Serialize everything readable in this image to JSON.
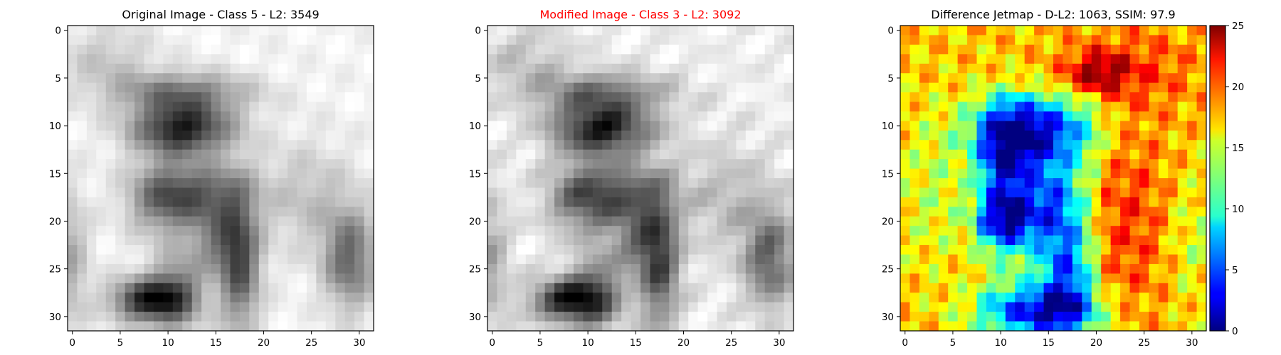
{
  "chart_data": [
    {
      "type": "heatmap",
      "title": "Original Image - Class 5 - L2: 3549",
      "title_color": "#000000",
      "colormap": "gray",
      "grid_size": [
        32,
        32
      ],
      "xlim": [
        -0.5,
        31.5
      ],
      "ylim": [
        31.5,
        -0.5
      ],
      "xticks": [
        "0",
        "5",
        "10",
        "15",
        "20",
        "25",
        "30"
      ],
      "yticks": [
        "0",
        "5",
        "10",
        "15",
        "20",
        "25",
        "30"
      ],
      "grid": false
    },
    {
      "type": "heatmap",
      "title": "Modified Image - Class 3 - L2: 3092",
      "title_color": "#ff0000",
      "colormap": "gray",
      "grid_size": [
        32,
        32
      ],
      "xlim": [
        -0.5,
        31.5
      ],
      "ylim": [
        31.5,
        -0.5
      ],
      "xticks": [
        "0",
        "5",
        "10",
        "15",
        "20",
        "25",
        "30"
      ],
      "yticks": [
        "0",
        "5",
        "10",
        "15",
        "20",
        "25",
        "30"
      ],
      "grid": false
    },
    {
      "type": "heatmap",
      "title": "Difference Jetmap - D-L2: 1063, SSIM: 97.9",
      "title_color": "#000000",
      "colormap": "jet",
      "grid_size": [
        32,
        32
      ],
      "xlim": [
        -0.5,
        31.5
      ],
      "ylim": [
        31.5,
        -0.5
      ],
      "xticks": [
        "0",
        "5",
        "10",
        "15",
        "20",
        "25",
        "30"
      ],
      "yticks": [
        "0",
        "5",
        "10",
        "15",
        "20",
        "25",
        "30"
      ],
      "colorbar": {
        "range": [
          0,
          25
        ],
        "ticks": [
          "0",
          "5",
          "10",
          "15",
          "20",
          "25"
        ],
        "placement": "right"
      },
      "grid": false
    }
  ]
}
